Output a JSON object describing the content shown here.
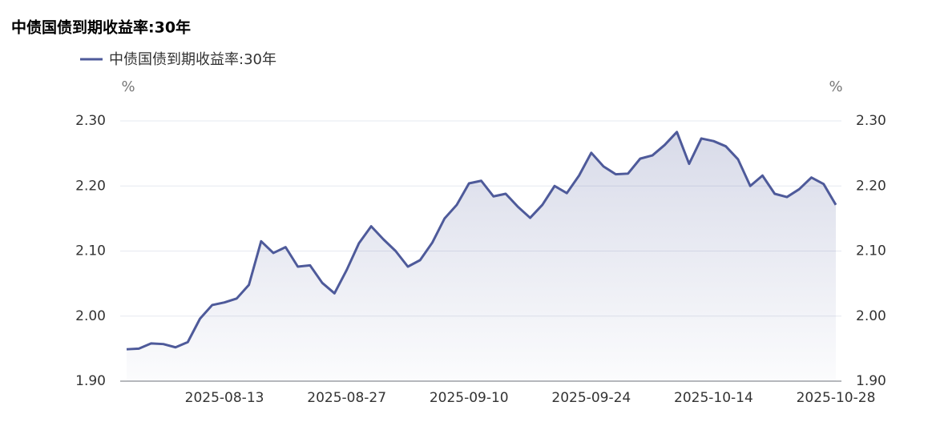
{
  "chart_data": {
    "type": "line",
    "title": "中债国债到期收益率:30年",
    "yunit": "%",
    "y2unit": "%",
    "categories": [
      null,
      null,
      null,
      null,
      null,
      null,
      null,
      null,
      "2025-08-13",
      null,
      null,
      null,
      null,
      null,
      null,
      null,
      null,
      null,
      "2025-08-27",
      null,
      null,
      null,
      null,
      null,
      null,
      null,
      null,
      null,
      "2025-09-10",
      null,
      null,
      null,
      null,
      null,
      null,
      null,
      null,
      null,
      "2025-09-24",
      null,
      null,
      null,
      null,
      null,
      null,
      null,
      null,
      null,
      "2025-10-14",
      null,
      null,
      null,
      null,
      null,
      null,
      null,
      null,
      null,
      "2025-10-28"
    ],
    "series": [
      {
        "name": "中债国债到期收益率:30年",
        "color": "#4e5a9a",
        "values": [
          1.949,
          1.95,
          1.958,
          1.957,
          1.952,
          1.96,
          1.996,
          2.017,
          2.021,
          2.027,
          2.048,
          2.115,
          2.097,
          2.106,
          2.076,
          2.078,
          2.051,
          2.035,
          2.071,
          2.112,
          2.138,
          2.118,
          2.1,
          2.076,
          2.086,
          2.113,
          2.15,
          2.171,
          2.204,
          2.208,
          2.184,
          2.188,
          2.168,
          2.151,
          2.171,
          2.2,
          2.189,
          2.216,
          2.251,
          2.23,
          2.218,
          2.219,
          2.242,
          2.247,
          2.263,
          2.283,
          2.234,
          2.273,
          2.269,
          2.261,
          2.241,
          2.2,
          2.216,
          2.188,
          2.183,
          2.195,
          2.213,
          2.203,
          2.171
        ]
      }
    ],
    "ylim": [
      1.9,
      2.3
    ],
    "yticks": [
      {
        "value": 1.9,
        "label": "1.90"
      },
      {
        "value": 2,
        "label": "2.00"
      },
      {
        "value": 2.1,
        "label": "2.10"
      },
      {
        "value": 2.2,
        "label": "2.20"
      },
      {
        "value": 2.3,
        "label": "2.30"
      }
    ],
    "y2lim": [
      1.9,
      2.3
    ],
    "y2ticks": [
      {
        "value": 1.9,
        "label": "1.90"
      },
      {
        "value": 2,
        "label": "2.00"
      },
      {
        "value": 2.1,
        "label": "2.10"
      },
      {
        "value": 2.2,
        "label": "2.20"
      },
      {
        "value": 2.3,
        "label": "2.30"
      }
    ],
    "grid": true,
    "area": true
  }
}
